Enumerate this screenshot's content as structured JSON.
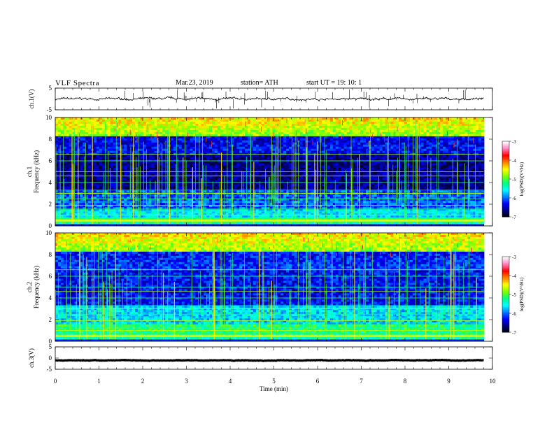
{
  "header": {
    "title": "VLF  Spectra",
    "date": "Mar.23, 2019",
    "station": "station= ATH",
    "start": "start  UT  =    19: 10: 1"
  },
  "colors": {
    "trace": "#000000",
    "colormap": [
      "#000000",
      "#00007f",
      "#0000ff",
      "#0080ff",
      "#00ffff",
      "#00ff7f",
      "#7fff00",
      "#ffff00",
      "#ff8000",
      "#ff0000",
      "#ff80c0",
      "#ffffff"
    ]
  },
  "chart_data": [
    {
      "type": "line",
      "panel": "ch1-waveform",
      "ylabel": "ch.1(V)",
      "ylim": [
        -5,
        5
      ],
      "yticks": [
        "5",
        "-5"
      ],
      "xlim": [
        0,
        10
      ],
      "mean_level": 0,
      "noise_amplitude": 0.6,
      "approx_spikes": 60
    },
    {
      "type": "heatmap",
      "panel": "ch1-spectrogram",
      "ylabel": "ch.1\nFrequency  (kHz)",
      "ylim": [
        0,
        10
      ],
      "yticks": [
        "0",
        "2",
        "4",
        "6",
        "8",
        "10"
      ],
      "xlim": [
        0,
        10
      ],
      "data_end_min": 9.8,
      "colorbar": {
        "label": "log(PSD)(V²/Hz)",
        "range": [
          -7,
          -3
        ],
        "ticks": [
          "-3",
          "-4",
          "-5",
          "-6",
          "-7"
        ]
      }
    },
    {
      "type": "heatmap",
      "panel": "ch2-spectrogram",
      "ylabel": "ch.2\nFrequency  (kHz)",
      "ylim": [
        0,
        10
      ],
      "yticks": [
        "0",
        "2",
        "4",
        "6",
        "8",
        "10"
      ],
      "xlim": [
        0,
        10
      ],
      "data_end_min": 9.8,
      "colorbar": {
        "label": "log(PSD)(V²/Hz)",
        "range": [
          -7,
          -3
        ],
        "ticks": [
          "-3",
          "-4",
          "-5",
          "-6",
          "-7"
        ]
      }
    },
    {
      "type": "line",
      "panel": "ch3-waveform",
      "ylabel": "ch.3(V)",
      "ylim": [
        -5,
        5
      ],
      "yticks": [
        "5",
        "0",
        "-5"
      ],
      "xlim": [
        0,
        10
      ],
      "xticks": [
        "0",
        "1",
        "2",
        "3",
        "4",
        "5",
        "6",
        "7",
        "8",
        "9",
        "10"
      ],
      "xlabel": "Time  (min)",
      "mean_level": -1.0,
      "noise_amplitude": 0.15
    }
  ]
}
